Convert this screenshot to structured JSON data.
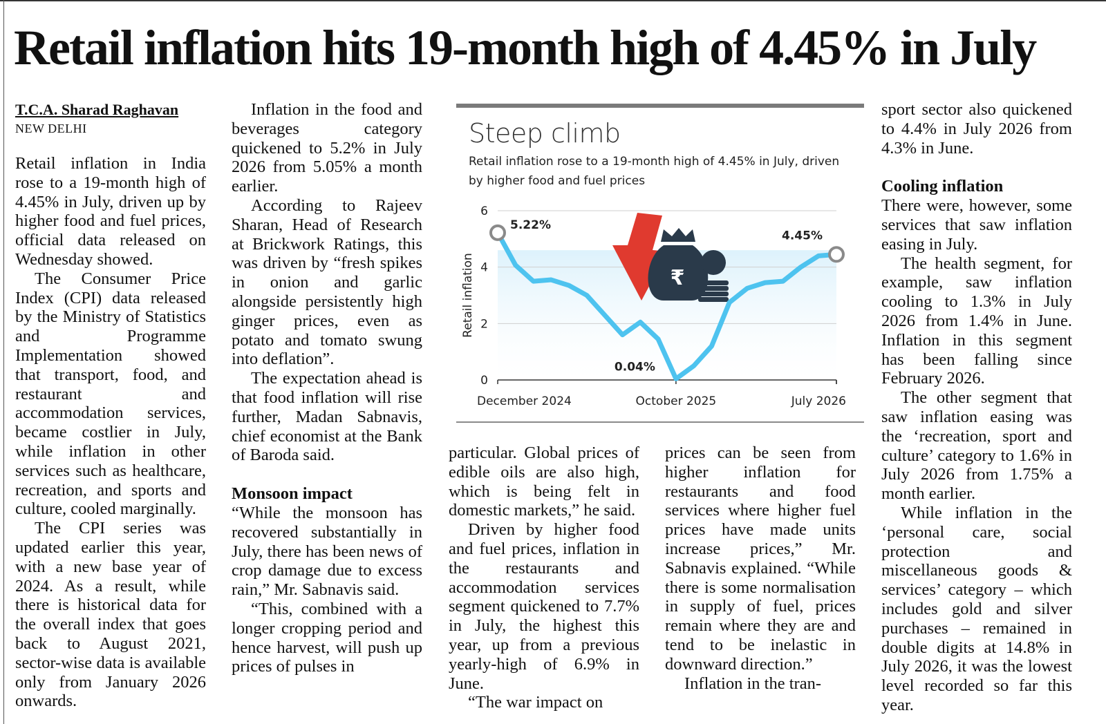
{
  "headline": "Retail inflation hits 19-month high of 4.45% in July",
  "byline": "T.C.A. Sharad Raghavan",
  "dateline": "NEW DELHI",
  "col1": [
    "Retail inflation in India rose to a 19-month high of 4.45% in July, driven up by higher food and fuel prices, official data released on Wednesday showed.",
    "The Consumer Price Index (CPI) data released by the Ministry of Statistics and Programme Implementation showed that transport, food, and restaurant and accommodation services, became costlier in July, while inflation in other services such as healthcare, recreation, and sports and culture, cooled marginally.",
    "The CPI series was updated earlier this year, with a new base year of 2024. As a result, while there is historical data for the overall index that goes back to August 2021, sector-wise data is available only from January 2026 onwards."
  ],
  "col2": [
    "Inflation in the food and beverages category quickened to 5.2% in July 2026 from 5.05% a month earlier.",
    "According to Rajeev Sharan, Head of Research at Brickwork Ratings, this was driven by “fresh spikes in onion and garlic alongside persistently high ginger prices, even as potato and tomato swung into deflation”.",
    "The expectation ahead is that food inflation will rise further, Madan Sabnavis, chief economist at the Bank of Baroda said."
  ],
  "col2_subhead": "Monsoon impact",
  "col2b": [
    "“While the monsoon has recovered substantially in July, there has been news of crop damage due to excess rain,” Mr. Sabnavis said.",
    "“This, combined with a longer cropping period and hence harvest, will push up prices of pulses in"
  ],
  "col3": [
    "particular. Global prices of edible oils are also high, which is being felt in domestic markets,” he said.",
    "Driven by higher food and fuel prices, inflation in the restaurants and accommodation services segment quickened to 7.7% in July, the highest this year, up from a previous yearly-high of 6.9% in June.",
    "“The war impact on"
  ],
  "col4": [
    "prices can be seen from higher inflation for restaurants and food services where higher fuel prices have made units increase prices,” Mr. Sabnavis explained. “While there is some normalisation in supply of fuel, prices remain where they are and tend to be inelastic in downward direction.”",
    "Inflation in the tran-"
  ],
  "col5": [
    "sport sector also quickened to 4.4% in July 2026 from 4.3% in June."
  ],
  "col5_subhead": "Cooling inflation",
  "col5b": [
    "There were, however, some services that saw inflation easing in July.",
    "The health segment, for example, saw inflation cooling to 1.3% in July 2026 from 1.4% in June. Inflation in this segment has been falling since February 2026.",
    "The other segment that saw inflation easing was the ‘recreation, sport and culture’ category to 1.6% in July 2026 from 1.75% a month earlier.",
    "While inflation in the ‘personal care, social protection and miscellaneous goods & services’ category – which includes gold and silver purchases – remained in double digits at 14.8% in July 2026, it was the lowest level recorded so far this year."
  ],
  "colors": {
    "line": "#4ec3ef",
    "arrow": "#e03a2f",
    "bag": "#2a3a4a",
    "grid": "#cfcfcf"
  },
  "chart_data": {
    "type": "area",
    "title": "Steep climb",
    "subtitle": "Retail inflation rose to a 19-month high of 4.45% in July, driven by higher food and fuel prices",
    "ylabel": "Retail inflation",
    "xlabel": "",
    "ylim": [
      0,
      6
    ],
    "yticks": [
      0,
      2,
      4,
      6
    ],
    "x_tick_labels": [
      "December 2024",
      "October 2025",
      "July 2026"
    ],
    "x_tick_index": [
      1,
      11,
      20
    ],
    "grid": true,
    "x": [
      "Dec 2024",
      "Jan 2025",
      "Feb 2025",
      "Mar 2025",
      "Apr 2025",
      "May 2025",
      "Jun 2025",
      "Jul 2025",
      "Aug 2025",
      "Sep 2025",
      "Oct 2025",
      "Nov 2025",
      "Dec 2025",
      "Jan 2026",
      "Feb 2026",
      "Mar 2026",
      "Apr 2026",
      "May 2026",
      "Jun 2026",
      "Jul 2026"
    ],
    "values": [
      5.22,
      4.07,
      3.5,
      3.55,
      3.35,
      3.0,
      2.3,
      1.6,
      2.05,
      1.45,
      0.04,
      0.5,
      1.2,
      2.75,
      3.25,
      3.45,
      3.5,
      4.0,
      4.4,
      4.45
    ],
    "annotations": [
      {
        "index": 0,
        "label": "5.22%"
      },
      {
        "index": 10,
        "label": "0.04%"
      },
      {
        "index": 19,
        "label": "4.45%"
      }
    ],
    "icon": "rupee-money-bag-with-up-arrow-icon"
  }
}
